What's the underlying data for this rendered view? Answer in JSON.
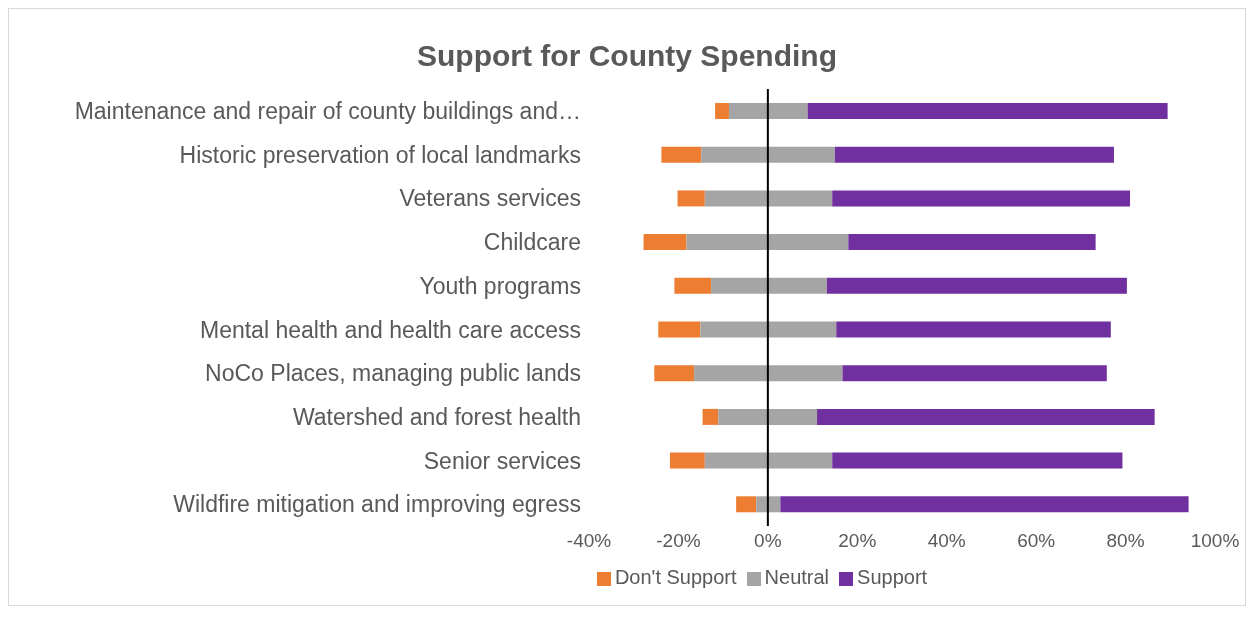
{
  "chart_data": {
    "type": "bar",
    "orientation": "horizontal",
    "title": "Support for County Spending",
    "categories": [
      "Maintenance and repair of county buildings and…",
      "Historic preservation of local landmarks",
      "Veterans services",
      "Childcare",
      "Youth programs",
      "Mental health and health care access",
      "NoCo Places, managing public lands",
      "Watershed and forest health",
      "Senior services",
      "Wildfire mitigation and improving egress"
    ],
    "series": [
      {
        "name": "Don't Support",
        "color": "#ed7d31",
        "base": [
          -11.8,
          -23.8,
          -20.2,
          -27.8,
          -20.9,
          -24.5,
          -25.4,
          -14.6,
          -21.9,
          -7.1
        ],
        "values": [
          3.1,
          8.9,
          6.1,
          9.6,
          8.2,
          9.4,
          8.9,
          3.5,
          7.8,
          4.5
        ]
      },
      {
        "name": "Neutral",
        "color": "#a5a5a5",
        "base": [
          -8.7,
          -14.9,
          -14.1,
          -18.2,
          -12.7,
          -15.1,
          -16.5,
          -11.1,
          -14.1,
          -2.6
        ],
        "values": [
          17.6,
          29.9,
          28.5,
          36.2,
          25.9,
          30.4,
          33.2,
          22.1,
          28.5,
          5.4
        ]
      },
      {
        "name": "Support",
        "color": "#7030a0",
        "base": [
          8.9,
          15.0,
          14.4,
          18.0,
          13.2,
          15.3,
          16.7,
          11.0,
          14.4,
          2.8
        ],
        "values": [
          80.5,
          62.4,
          66.6,
          55.3,
          67.1,
          61.4,
          59.1,
          75.5,
          64.9,
          91.3
        ]
      }
    ],
    "xlim": [
      -40,
      100
    ],
    "xticks": [
      {
        "value": -40,
        "label": "-40%"
      },
      {
        "value": -20,
        "label": "-20%"
      },
      {
        "value": 0,
        "label": "0%"
      },
      {
        "value": 20,
        "label": "20%"
      },
      {
        "value": 40,
        "label": "40%"
      },
      {
        "value": 60,
        "label": "60%"
      },
      {
        "value": 80,
        "label": "80%"
      },
      {
        "value": 100,
        "label": "100%"
      }
    ],
    "ref_lines": [
      {
        "axis": "x",
        "value": 0,
        "color": "#000000"
      }
    ],
    "legend": "bottom"
  }
}
